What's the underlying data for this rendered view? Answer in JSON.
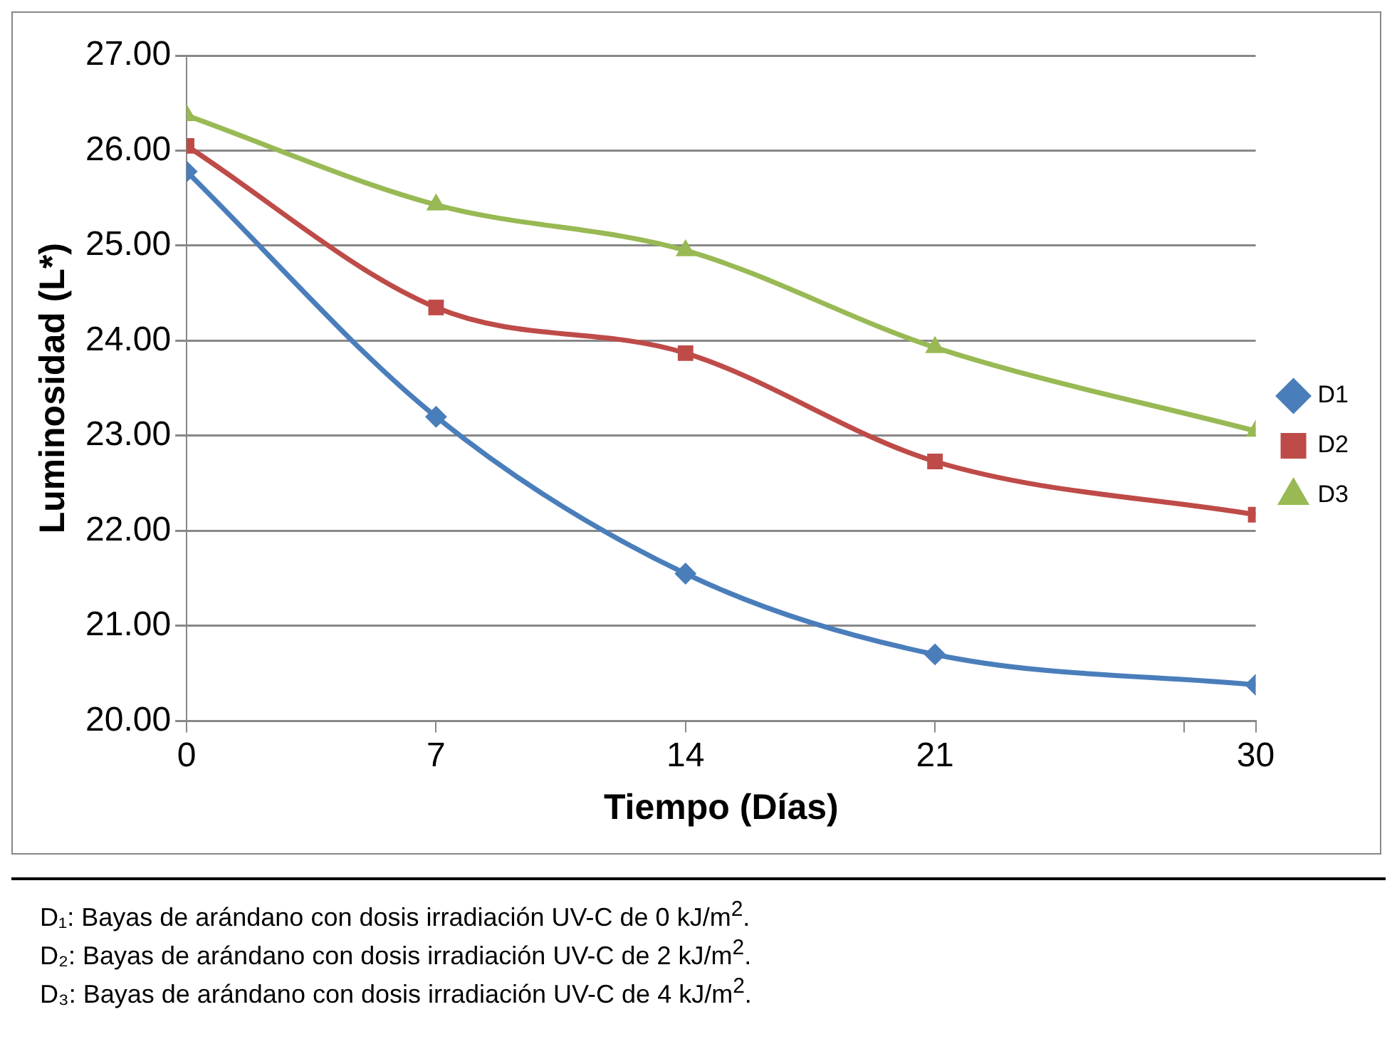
{
  "chart_data": {
    "type": "line",
    "xlabel": "Tiempo (Días)",
    "ylabel": "Luminosidad (L*)",
    "x": [
      0,
      7,
      14,
      21,
      30
    ],
    "series": [
      {
        "name": "D1",
        "color": "#4a7ebb",
        "marker": "diamond",
        "values": [
          25.78,
          23.2,
          21.55,
          20.7,
          20.38
        ]
      },
      {
        "name": "D2",
        "color": "#be4b48",
        "marker": "square",
        "values": [
          26.05,
          24.35,
          23.87,
          22.73,
          22.17
        ]
      },
      {
        "name": "D3",
        "color": "#98b954",
        "marker": "triangle",
        "values": [
          26.37,
          25.43,
          24.95,
          23.93,
          23.05
        ]
      }
    ],
    "xlim": [
      0,
      30
    ],
    "xticks": [
      0,
      7,
      14,
      21,
      {
        "value": 28,
        "label": null
      },
      30
    ],
    "ylim": [
      20,
      27
    ],
    "yticks": [
      {
        "value": 20,
        "label": "20.00"
      },
      {
        "value": 21,
        "label": "21.00"
      },
      {
        "value": 22,
        "label": "22.00"
      },
      {
        "value": 23,
        "label": "23.00"
      },
      {
        "value": 24,
        "label": "24.00"
      },
      {
        "value": 25,
        "label": "25.00"
      },
      {
        "value": 26,
        "label": "26.00"
      },
      {
        "value": 27,
        "label": "27.00"
      }
    ],
    "grid": "y",
    "legend": "right",
    "line_style": "solid",
    "annotations": [
      "D₁: Bayas de arándano con dosis irradiación UV-C de 0 kJ/m$^{2}$.",
      "D₂: Bayas de arándano con dosis irradiación UV-C de 2 kJ/m$^{2}$.",
      "D₃: Bayas de arándano con dosis irradiación UV-C de 4 kJ/m$^{2}$."
    ]
  }
}
